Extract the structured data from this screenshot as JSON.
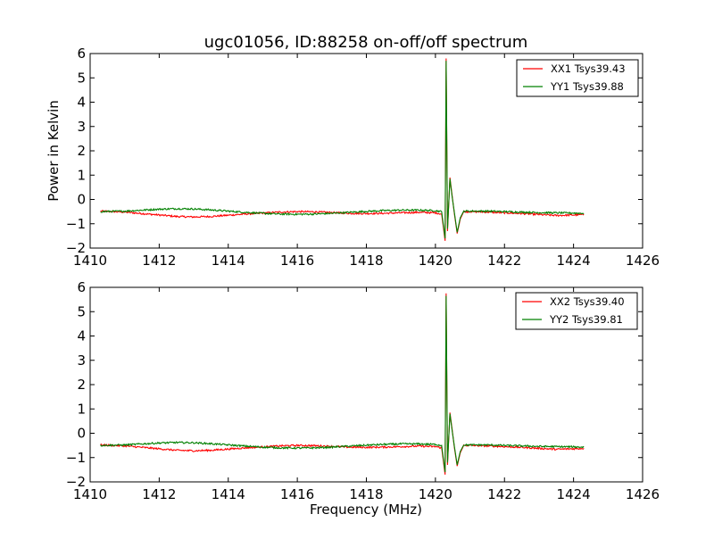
{
  "chart_data": [
    {
      "type": "line",
      "title": "ugc01056, ID:88258 on-off/off spectrum",
      "xlabel": "",
      "ylabel": "Power in Kelvin",
      "xlim": [
        1410,
        1426
      ],
      "ylim": [
        -2,
        6
      ],
      "xticks": [
        "1410",
        "1412",
        "1414",
        "1416",
        "1418",
        "1420",
        "1422",
        "1424",
        "1426"
      ],
      "yticks": [
        "−2",
        "−1",
        "0",
        "1",
        "2",
        "3",
        "4",
        "5",
        "6"
      ],
      "grid": false,
      "legend_position": "top-right",
      "x_range": [
        1410.3,
        1424.3
      ],
      "series": [
        {
          "name": "XX1 Tsys39.43",
          "color": "#ff0000",
          "points": [
            [
              1410.3,
              -0.48
            ],
            [
              1411.0,
              -0.52
            ],
            [
              1411.5,
              -0.58
            ],
            [
              1412.0,
              -0.64
            ],
            [
              1412.5,
              -0.7
            ],
            [
              1413.0,
              -0.72
            ],
            [
              1413.5,
              -0.7
            ],
            [
              1414.0,
              -0.65
            ],
            [
              1414.5,
              -0.6
            ],
            [
              1415.0,
              -0.56
            ],
            [
              1415.5,
              -0.52
            ],
            [
              1416.0,
              -0.5
            ],
            [
              1416.5,
              -0.51
            ],
            [
              1417.0,
              -0.54
            ],
            [
              1417.5,
              -0.57
            ],
            [
              1418.0,
              -0.58
            ],
            [
              1418.5,
              -0.57
            ],
            [
              1419.0,
              -0.55
            ],
            [
              1419.5,
              -0.53
            ],
            [
              1420.0,
              -0.55
            ],
            [
              1420.18,
              -0.6
            ],
            [
              1420.28,
              -1.7
            ],
            [
              1420.31,
              5.8
            ],
            [
              1420.35,
              -1.3
            ],
            [
              1420.42,
              0.9
            ],
            [
              1420.48,
              0.2
            ],
            [
              1420.55,
              -0.6
            ],
            [
              1420.63,
              -1.4
            ],
            [
              1420.72,
              -0.8
            ],
            [
              1420.82,
              -0.5
            ],
            [
              1421.0,
              -0.5
            ],
            [
              1421.5,
              -0.52
            ],
            [
              1422.0,
              -0.55
            ],
            [
              1422.5,
              -0.58
            ],
            [
              1423.0,
              -0.62
            ],
            [
              1423.5,
              -0.66
            ],
            [
              1424.0,
              -0.64
            ],
            [
              1424.3,
              -0.62
            ]
          ]
        },
        {
          "name": "YY1 Tsys39.88",
          "color": "#008000",
          "points": [
            [
              1410.3,
              -0.5
            ],
            [
              1411.0,
              -0.48
            ],
            [
              1411.5,
              -0.44
            ],
            [
              1412.0,
              -0.4
            ],
            [
              1412.5,
              -0.38
            ],
            [
              1413.0,
              -0.39
            ],
            [
              1413.5,
              -0.43
            ],
            [
              1414.0,
              -0.48
            ],
            [
              1414.5,
              -0.53
            ],
            [
              1415.0,
              -0.57
            ],
            [
              1415.5,
              -0.6
            ],
            [
              1416.0,
              -0.61
            ],
            [
              1416.5,
              -0.6
            ],
            [
              1417.0,
              -0.57
            ],
            [
              1417.5,
              -0.53
            ],
            [
              1418.0,
              -0.49
            ],
            [
              1418.5,
              -0.46
            ],
            [
              1419.0,
              -0.44
            ],
            [
              1419.5,
              -0.44
            ],
            [
              1420.0,
              -0.46
            ],
            [
              1420.18,
              -0.5
            ],
            [
              1420.28,
              -1.6
            ],
            [
              1420.31,
              5.7
            ],
            [
              1420.35,
              -1.2
            ],
            [
              1420.42,
              0.85
            ],
            [
              1420.48,
              0.15
            ],
            [
              1420.55,
              -0.55
            ],
            [
              1420.63,
              -1.35
            ],
            [
              1420.72,
              -0.75
            ],
            [
              1420.82,
              -0.48
            ],
            [
              1421.0,
              -0.48
            ],
            [
              1421.5,
              -0.48
            ],
            [
              1422.0,
              -0.5
            ],
            [
              1422.5,
              -0.52
            ],
            [
              1423.0,
              -0.54
            ],
            [
              1423.5,
              -0.55
            ],
            [
              1424.0,
              -0.56
            ],
            [
              1424.3,
              -0.57
            ]
          ]
        }
      ]
    },
    {
      "type": "line",
      "title": "",
      "xlabel": "Frequency (MHz)",
      "ylabel": "",
      "xlim": [
        1410,
        1426
      ],
      "ylim": [
        -2,
        6
      ],
      "xticks": [
        "1410",
        "1412",
        "1414",
        "1416",
        "1418",
        "1420",
        "1422",
        "1424",
        "1426"
      ],
      "yticks": [
        "−2",
        "−1",
        "0",
        "1",
        "2",
        "3",
        "4",
        "5",
        "6"
      ],
      "grid": false,
      "legend_position": "top-right",
      "x_range": [
        1410.3,
        1424.3
      ],
      "series": [
        {
          "name": "XX2 Tsys39.40",
          "color": "#ff0000",
          "points": [
            [
              1410.3,
              -0.48
            ],
            [
              1411.0,
              -0.52
            ],
            [
              1411.5,
              -0.58
            ],
            [
              1412.0,
              -0.64
            ],
            [
              1412.5,
              -0.7
            ],
            [
              1413.0,
              -0.72
            ],
            [
              1413.5,
              -0.7
            ],
            [
              1414.0,
              -0.65
            ],
            [
              1414.5,
              -0.6
            ],
            [
              1415.0,
              -0.56
            ],
            [
              1415.5,
              -0.52
            ],
            [
              1416.0,
              -0.5
            ],
            [
              1416.5,
              -0.51
            ],
            [
              1417.0,
              -0.54
            ],
            [
              1417.5,
              -0.57
            ],
            [
              1418.0,
              -0.58
            ],
            [
              1418.5,
              -0.57
            ],
            [
              1419.0,
              -0.55
            ],
            [
              1419.5,
              -0.53
            ],
            [
              1420.0,
              -0.55
            ],
            [
              1420.18,
              -0.6
            ],
            [
              1420.28,
              -1.7
            ],
            [
              1420.31,
              5.75
            ],
            [
              1420.35,
              -1.3
            ],
            [
              1420.42,
              0.85
            ],
            [
              1420.48,
              0.2
            ],
            [
              1420.55,
              -0.6
            ],
            [
              1420.63,
              -1.35
            ],
            [
              1420.72,
              -0.8
            ],
            [
              1420.82,
              -0.5
            ],
            [
              1421.0,
              -0.5
            ],
            [
              1421.5,
              -0.52
            ],
            [
              1422.0,
              -0.55
            ],
            [
              1422.5,
              -0.58
            ],
            [
              1423.0,
              -0.62
            ],
            [
              1423.5,
              -0.66
            ],
            [
              1424.0,
              -0.64
            ],
            [
              1424.3,
              -0.62
            ]
          ]
        },
        {
          "name": "YY2 Tsys39.81",
          "color": "#008000",
          "points": [
            [
              1410.3,
              -0.5
            ],
            [
              1411.0,
              -0.48
            ],
            [
              1411.5,
              -0.44
            ],
            [
              1412.0,
              -0.4
            ],
            [
              1412.5,
              -0.38
            ],
            [
              1413.0,
              -0.39
            ],
            [
              1413.5,
              -0.43
            ],
            [
              1414.0,
              -0.48
            ],
            [
              1414.5,
              -0.53
            ],
            [
              1415.0,
              -0.57
            ],
            [
              1415.5,
              -0.6
            ],
            [
              1416.0,
              -0.61
            ],
            [
              1416.5,
              -0.6
            ],
            [
              1417.0,
              -0.57
            ],
            [
              1417.5,
              -0.53
            ],
            [
              1418.0,
              -0.49
            ],
            [
              1418.5,
              -0.46
            ],
            [
              1419.0,
              -0.44
            ],
            [
              1419.5,
              -0.44
            ],
            [
              1420.0,
              -0.46
            ],
            [
              1420.18,
              -0.5
            ],
            [
              1420.28,
              -1.6
            ],
            [
              1420.31,
              5.65
            ],
            [
              1420.35,
              -1.2
            ],
            [
              1420.42,
              0.8
            ],
            [
              1420.48,
              0.15
            ],
            [
              1420.55,
              -0.55
            ],
            [
              1420.63,
              -1.3
            ],
            [
              1420.72,
              -0.75
            ],
            [
              1420.82,
              -0.48
            ],
            [
              1421.0,
              -0.48
            ],
            [
              1421.5,
              -0.48
            ],
            [
              1422.0,
              -0.5
            ],
            [
              1422.5,
              -0.52
            ],
            [
              1423.0,
              -0.54
            ],
            [
              1423.5,
              -0.55
            ],
            [
              1424.0,
              -0.56
            ],
            [
              1424.3,
              -0.57
            ]
          ]
        }
      ]
    }
  ]
}
